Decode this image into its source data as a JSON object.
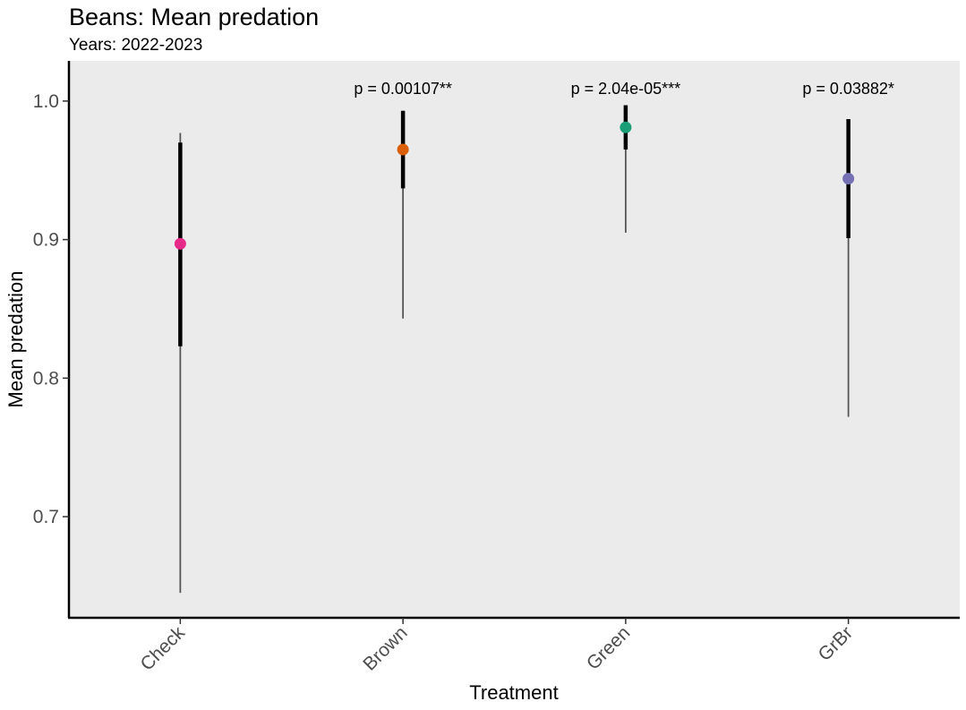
{
  "chart_data": {
    "type": "pointrange",
    "title": "Beans: Mean predation",
    "subtitle": "Years: 2022-2023",
    "xlabel": "Treatment",
    "ylabel": "Mean predation",
    "categories": [
      "Check",
      "Brown",
      "Green",
      "GrBr"
    ],
    "ylim": [
      0.627,
      1.029
    ],
    "yticks": [
      0.7,
      0.8,
      0.9,
      1.0
    ],
    "ytick_labels": [
      "0.7",
      "0.8",
      "0.9",
      "1.0"
    ],
    "points": [
      {
        "category": "Check",
        "mean": 0.897,
        "inner_low": 0.823,
        "inner_high": 0.97,
        "outer_low": 0.645,
        "outer_high": 0.977,
        "color": "#e7298a",
        "annotation": ""
      },
      {
        "category": "Brown",
        "mean": 0.965,
        "inner_low": 0.937,
        "inner_high": 0.993,
        "outer_low": 0.843,
        "outer_high": 0.993,
        "color": "#d95f02",
        "annotation": "p = 0.00107**"
      },
      {
        "category": "Green",
        "mean": 0.981,
        "inner_low": 0.965,
        "inner_high": 0.997,
        "outer_low": 0.905,
        "outer_high": 0.997,
        "color": "#1b9e77",
        "annotation": "p = 2.04e-05***"
      },
      {
        "category": "GrBr",
        "mean": 0.944,
        "inner_low": 0.901,
        "inner_high": 0.987,
        "outer_low": 0.772,
        "outer_high": 0.987,
        "color": "#7570b3",
        "annotation": "p = 0.03882*"
      }
    ],
    "panel_background": "#ebebeb",
    "grid": false,
    "legend": "none"
  }
}
